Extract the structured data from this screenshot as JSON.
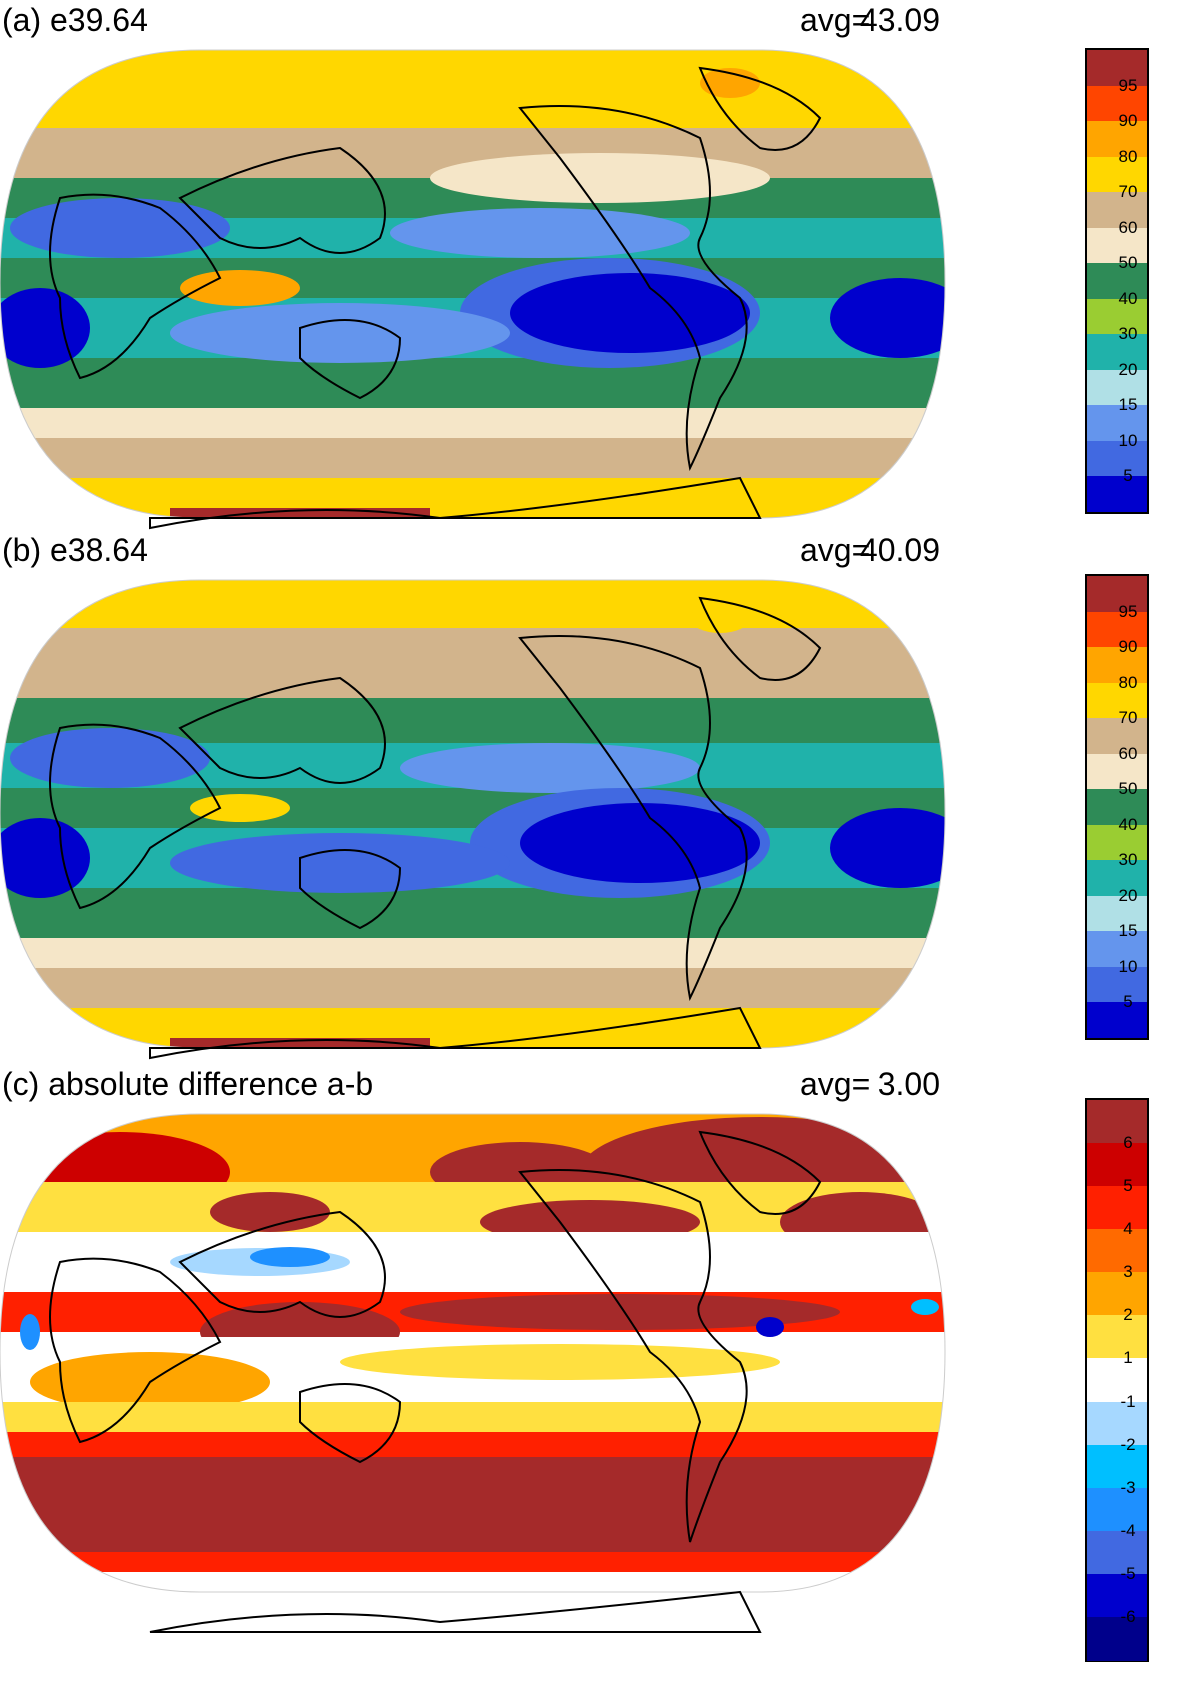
{
  "panels": [
    {
      "title": "(a) e39.64",
      "avg_label": "avg=",
      "avg_value": "43.09",
      "colorbar": {
        "labels": [
          "95",
          "90",
          "80",
          "70",
          "60",
          "50",
          "40",
          "30",
          "20",
          "15",
          "10",
          "5"
        ],
        "colors": [
          "#a52a2a",
          "#ff4500",
          "#ffa500",
          "#ffd700",
          "#d2b48c",
          "#f5e6c8",
          "#2e8b57",
          "#9acd32",
          "#20b2aa",
          "#b0e0e6",
          "#6495ed",
          "#4169e1",
          "#0000cd"
        ]
      }
    },
    {
      "title": "(b) e38.64",
      "avg_label": "avg=",
      "avg_value": "40.09",
      "colorbar": {
        "labels": [
          "95",
          "90",
          "80",
          "70",
          "60",
          "50",
          "40",
          "30",
          "20",
          "15",
          "10",
          "5"
        ],
        "colors": [
          "#a52a2a",
          "#ff4500",
          "#ffa500",
          "#ffd700",
          "#d2b48c",
          "#f5e6c8",
          "#2e8b57",
          "#9acd32",
          "#20b2aa",
          "#b0e0e6",
          "#6495ed",
          "#4169e1",
          "#0000cd"
        ]
      }
    },
    {
      "title": "(c) absolute difference a-b",
      "avg_label": "avg=",
      "avg_value": "3.00",
      "colorbar": {
        "labels": [
          "6",
          "5",
          "4",
          "3",
          "2",
          "1",
          "-1",
          "-2",
          "-3",
          "-4",
          "-5",
          "-6"
        ],
        "colors": [
          "#a52a2a",
          "#cd0000",
          "#ff2000",
          "#ff6a00",
          "#ffa500",
          "#ffe040",
          "#ffffff",
          "#a6d8ff",
          "#00bfff",
          "#1e90ff",
          "#4169e1",
          "#0000cd",
          "#00008b"
        ]
      }
    }
  ]
}
